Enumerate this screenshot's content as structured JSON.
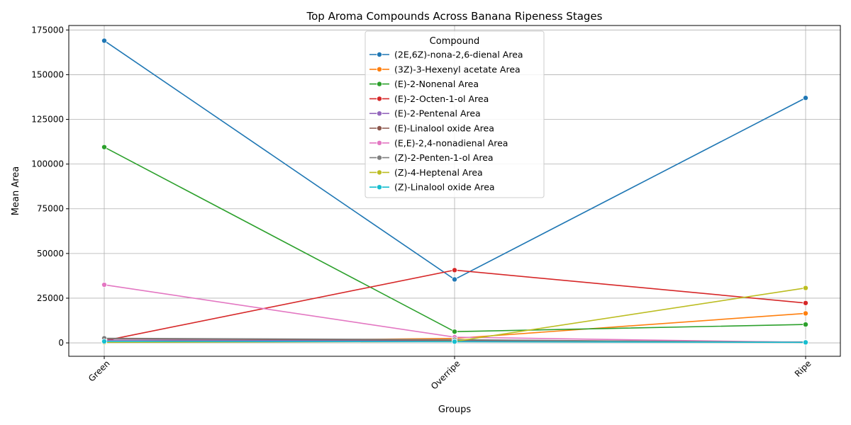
{
  "chart_data": {
    "type": "line",
    "title": "Top Aroma Compounds Across Banana Ripeness Stages",
    "xlabel": "Groups",
    "ylabel": "Mean Area",
    "categories": [
      "Green",
      "Overripe",
      "Ripe"
    ],
    "ylim": [
      -7500,
      177500
    ],
    "yticks": [
      0,
      25000,
      50000,
      75000,
      100000,
      125000,
      150000,
      175000
    ],
    "grid": true,
    "legend_title": "Compound",
    "legend_position": "top-center",
    "series": [
      {
        "name": "(2E,6Z)-nona-2,6-dienal Area",
        "color": "#1f77b4",
        "values": [
          169000,
          35500,
          137000
        ]
      },
      {
        "name": "(3Z)-3-Hexenyl acetate Area",
        "color": "#ff7f0e",
        "values": [
          500,
          2500,
          16500
        ]
      },
      {
        "name": "(E)-2-Nonenal Area",
        "color": "#2ca02c",
        "values": [
          109500,
          6300,
          10300
        ]
      },
      {
        "name": "(E)-2-Octen-1-ol Area",
        "color": "#d62728",
        "values": [
          1200,
          40700,
          22300
        ]
      },
      {
        "name": "(E)-2-Pentenal Area",
        "color": "#9467bd",
        "values": [
          1500,
          1200,
          500
        ]
      },
      {
        "name": "(E)-Linalool oxide Area",
        "color": "#8c564b",
        "values": [
          2300,
          1500,
          400
        ]
      },
      {
        "name": "(E,E)-2,4-nonadienal Area",
        "color": "#e377c2",
        "values": [
          32500,
          3200,
          300
        ]
      },
      {
        "name": "(Z)-2-Penten-1-ol Area",
        "color": "#7f7f7f",
        "values": [
          2600,
          1800,
          300
        ]
      },
      {
        "name": "(Z)-4-Heptenal Area",
        "color": "#bcbd22",
        "values": [
          300,
          800,
          30700
        ]
      },
      {
        "name": "(Z)-Linalool oxide Area",
        "color": "#17becf",
        "values": [
          800,
          700,
          300
        ]
      }
    ]
  }
}
